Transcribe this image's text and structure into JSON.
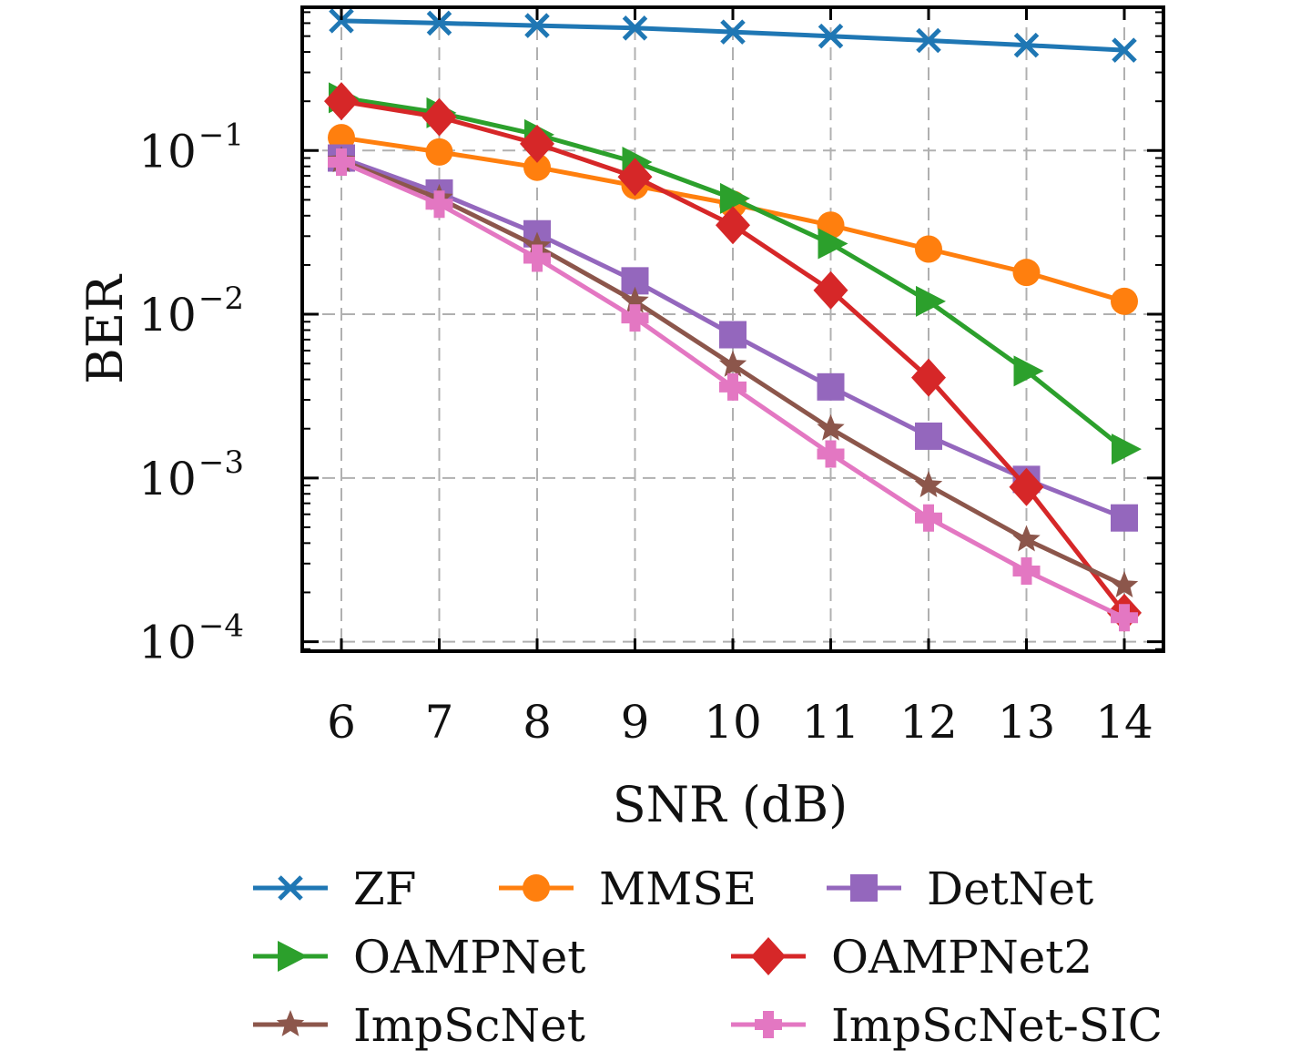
{
  "chart_data": {
    "type": "line",
    "xlabel": "SNR (dB)",
    "ylabel": "BER",
    "x": [
      6,
      7,
      8,
      9,
      10,
      11,
      12,
      13,
      14
    ],
    "xlim": [
      5.6,
      14.4
    ],
    "ylim": [
      8.75e-05,
      0.75
    ],
    "yscale": "log",
    "grid": true,
    "legend_position": "bottom",
    "x_tick_labels": [
      "6",
      "7",
      "8",
      "9",
      "10",
      "11",
      "12",
      "13",
      "14"
    ],
    "y_ticks": [
      {
        "base": "10",
        "exp": "−1",
        "value": 0.1
      },
      {
        "base": "10",
        "exp": "−2",
        "value": 0.01
      },
      {
        "base": "10",
        "exp": "−3",
        "value": 0.001
      },
      {
        "base": "10",
        "exp": "−4",
        "value": 0.0001
      }
    ],
    "series": [
      {
        "name": "ZF",
        "color": "#1f77b4",
        "marker": "x",
        "values": [
          0.62,
          0.6,
          0.58,
          0.56,
          0.53,
          0.5,
          0.47,
          0.44,
          0.41
        ]
      },
      {
        "name": "MMSE",
        "color": "#ff7f0e",
        "marker": "circle",
        "values": [
          0.12,
          0.098,
          0.079,
          0.061,
          0.047,
          0.035,
          0.025,
          0.018,
          0.012
        ]
      },
      {
        "name": "DetNet",
        "color": "#9467bd",
        "marker": "square",
        "values": [
          0.09,
          0.055,
          0.031,
          0.016,
          0.0075,
          0.0036,
          0.0018,
          0.00098,
          0.00057
        ]
      },
      {
        "name": "OAMPNet",
        "color": "#2ca02c",
        "marker": "triangle-right",
        "values": [
          0.21,
          0.17,
          0.125,
          0.085,
          0.051,
          0.027,
          0.012,
          0.0045,
          0.0015
        ]
      },
      {
        "name": "OAMPNet2",
        "color": "#d62728",
        "marker": "diamond",
        "values": [
          0.2,
          0.16,
          0.11,
          0.069,
          0.035,
          0.014,
          0.0041,
          0.00088,
          0.00015
        ]
      },
      {
        "name": "ImpScNet",
        "color": "#8c564b",
        "marker": "star",
        "values": [
          0.087,
          0.051,
          0.026,
          0.012,
          0.0049,
          0.002,
          0.0009,
          0.00042,
          0.00022
        ]
      },
      {
        "name": "ImpScNet-SIC",
        "color": "#e377c2",
        "marker": "plus",
        "values": [
          0.085,
          0.047,
          0.022,
          0.0095,
          0.0036,
          0.0014,
          0.00057,
          0.00027,
          0.00014
        ]
      }
    ]
  }
}
